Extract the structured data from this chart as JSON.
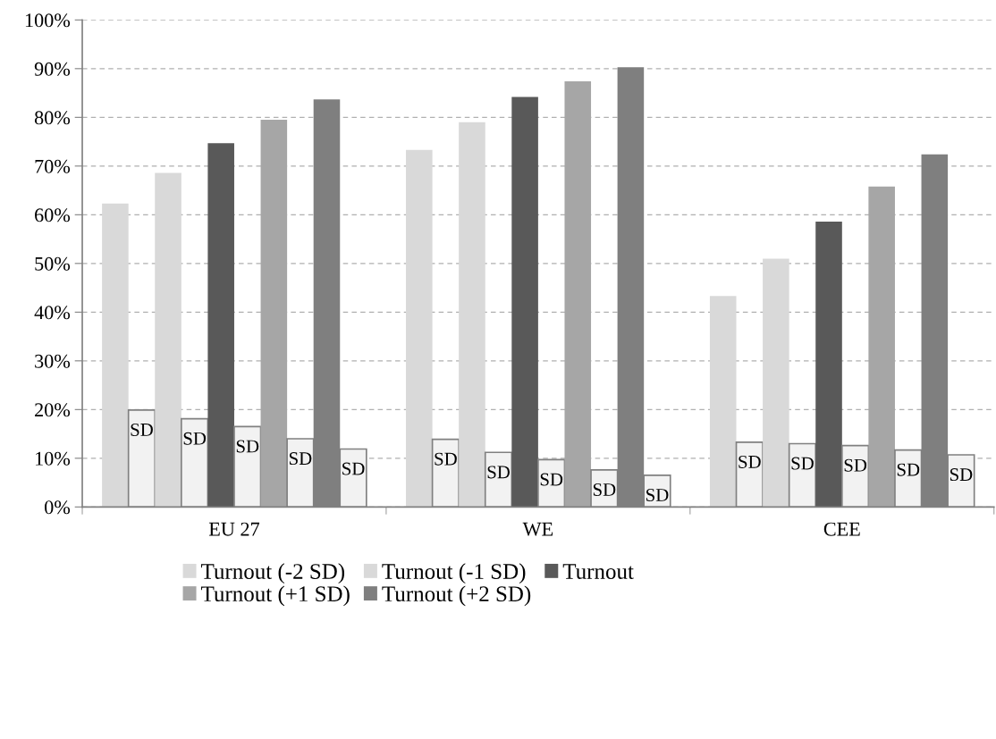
{
  "chart_data": {
    "type": "bar",
    "categories": [
      "EU 27",
      "WE",
      "CEE"
    ],
    "series": [
      {
        "name": "Turnout (-2 SD)",
        "color": "#d9d9d9",
        "values": [
          62.3,
          73.3,
          43.3
        ]
      },
      {
        "color": "#f2f2f2",
        "values": [
          19.9,
          13.9,
          13.3
        ],
        "value_labels": [
          "SD",
          "SD",
          "SD"
        ]
      },
      {
        "name": "Turnout (-1 SD)",
        "color": "#d9d9d9",
        "values": [
          68.6,
          79.0,
          51.0
        ]
      },
      {
        "color": "#f2f2f2",
        "values": [
          18.1,
          11.2,
          13.0
        ],
        "value_labels": [
          "SD",
          "SD",
          "SD"
        ]
      },
      {
        "name": "Turnout",
        "color": "#595959",
        "values": [
          74.7,
          84.2,
          58.6
        ]
      },
      {
        "color": "#f2f2f2",
        "values": [
          16.5,
          9.7,
          12.6
        ],
        "value_labels": [
          "SD",
          "SD",
          "SD"
        ]
      },
      {
        "name": "Turnout (+1 SD)",
        "color": "#a6a6a6",
        "values": [
          79.5,
          87.4,
          65.8
        ]
      },
      {
        "color": "#f2f2f2",
        "values": [
          14.0,
          7.6,
          11.7
        ],
        "value_labels": [
          "SD",
          "SD",
          "SD"
        ]
      },
      {
        "name": "Turnout (+2 SD)",
        "color": "#7f7f7f",
        "values": [
          83.7,
          90.3,
          72.4
        ]
      },
      {
        "color": "#f2f2f2",
        "values": [
          11.9,
          6.5,
          10.7
        ],
        "value_labels": [
          "SD",
          "SD",
          "SD"
        ]
      }
    ],
    "ylim": [
      0,
      100
    ],
    "yticks": [
      {
        "value": 0,
        "label": "0%"
      },
      {
        "value": 10,
        "label": "10%"
      },
      {
        "value": 20,
        "label": "20%"
      },
      {
        "value": 30,
        "label": "30%"
      },
      {
        "value": 40,
        "label": "40%"
      },
      {
        "value": 50,
        "label": "50%"
      },
      {
        "value": 60,
        "label": "60%"
      },
      {
        "value": 70,
        "label": "70%"
      },
      {
        "value": 80,
        "label": "80%"
      },
      {
        "value": 90,
        "label": "90%"
      },
      {
        "value": 100,
        "label": "100%"
      }
    ],
    "grid": "y",
    "legend": "bottom"
  }
}
